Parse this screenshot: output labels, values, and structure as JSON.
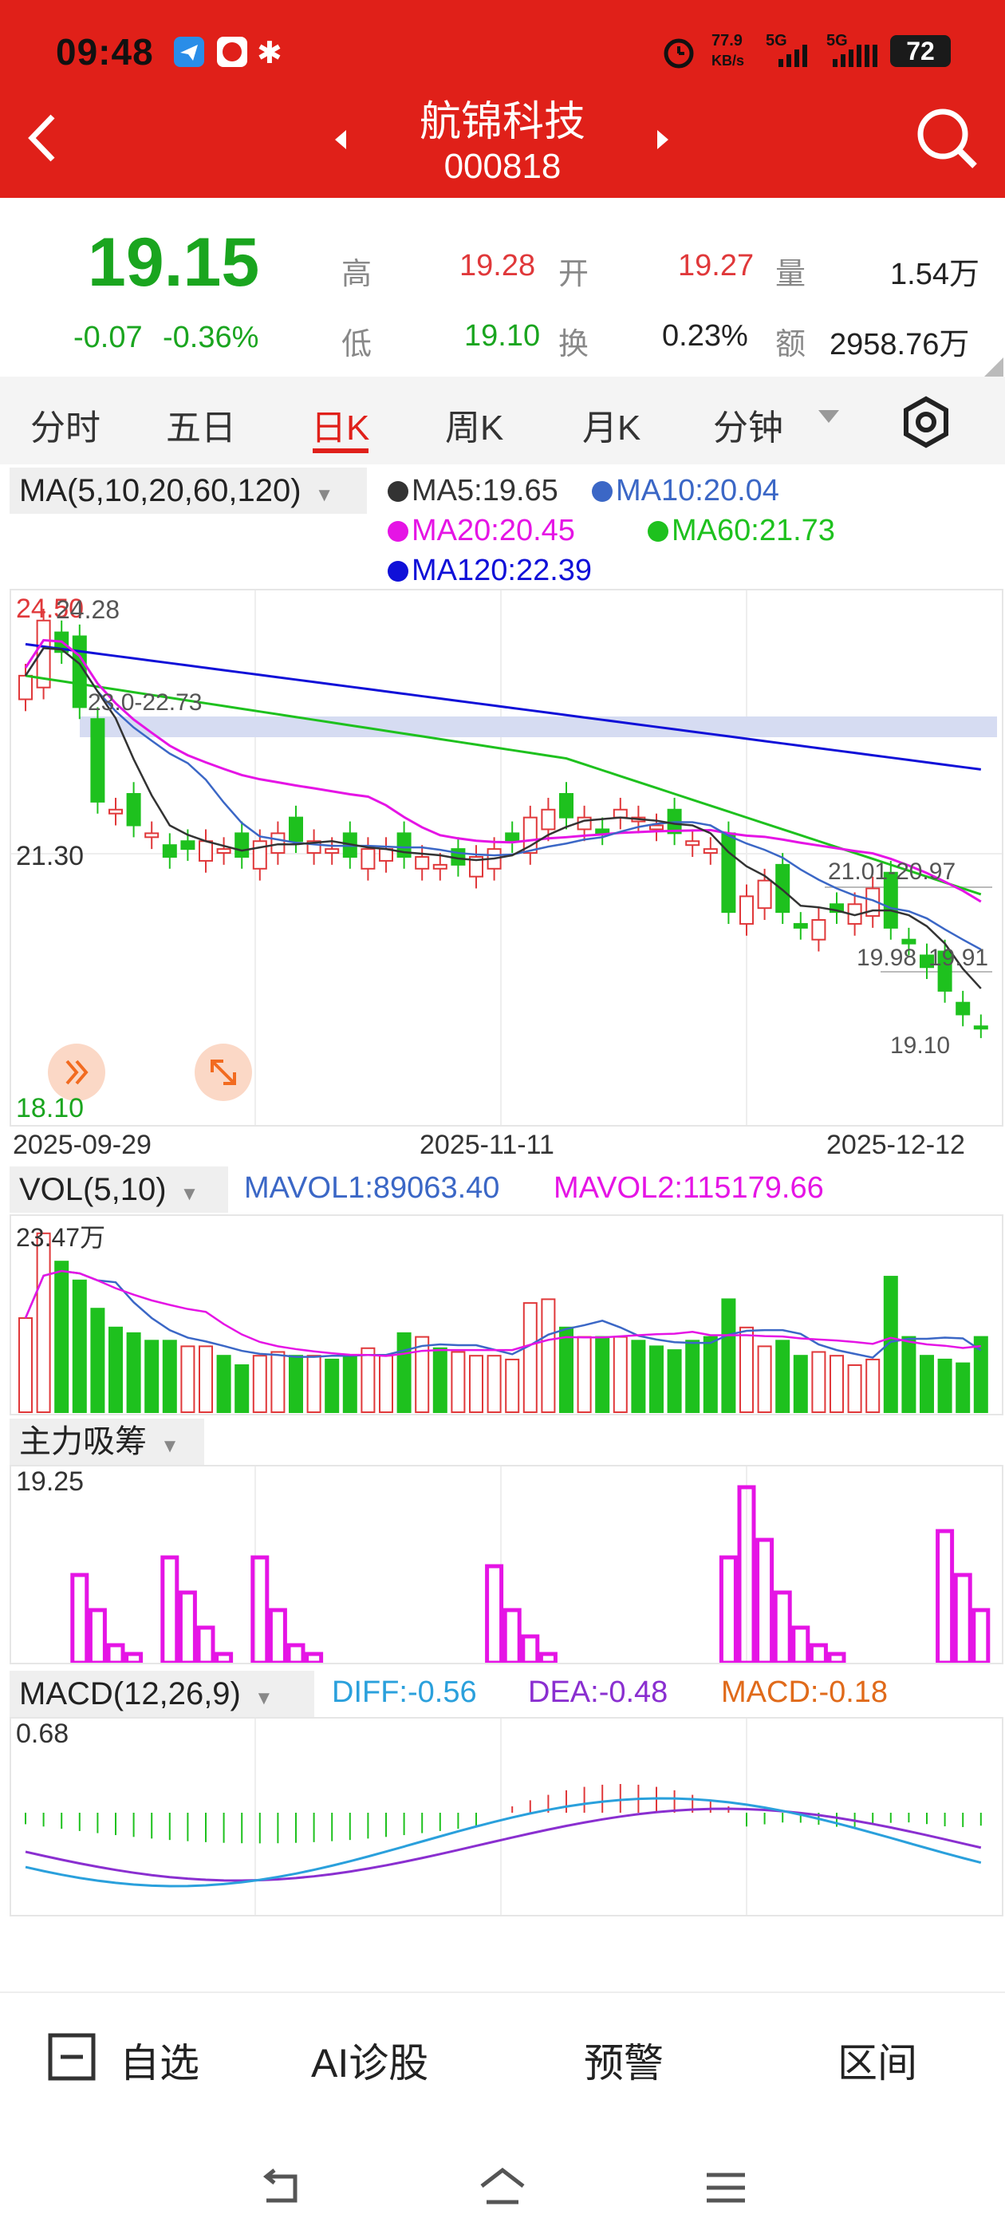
{
  "status_bar": {
    "time": "09:48",
    "net_speed": "77.9",
    "net_unit": "KB/s",
    "sig1": "5G",
    "sig2": "5G",
    "battery": "72"
  },
  "header": {
    "name": "航锦科技",
    "code": "000818"
  },
  "quote": {
    "price": "19.15",
    "change": "-0.07",
    "change_pct": "-0.36%",
    "high_label": "高",
    "high": "19.28",
    "open_label": "开",
    "open": "19.27",
    "vol_label": "量",
    "vol": "1.54万",
    "low_label": "低",
    "low": "19.10",
    "turn_label": "换",
    "turn": "0.23%",
    "amt_label": "额",
    "amt": "2958.76万"
  },
  "tabs": {
    "t1": "分时",
    "t2": "五日",
    "t3": "日K",
    "t4": "周K",
    "t5": "月K",
    "t6": "分钟"
  },
  "ma": {
    "selector": "MA(5,10,20,60,120)",
    "ma5": "MA5:19.65",
    "ma10": "MA10:20.04",
    "ma20": "MA20:20.45",
    "ma60": "MA60:21.73",
    "ma120": "MA120:22.39",
    "colors": {
      "ma5": "#333333",
      "ma10": "#3b67c6",
      "ma20": "#e514e5",
      "ma60": "#1ec11e",
      "ma120": "#1010d8"
    }
  },
  "kchart": {
    "high_label": "24.50",
    "high2": "24.28",
    "mid_label": "21.30",
    "low_label": "18.10",
    "band_label": "23.0-22.73",
    "ann1": "21.01-20.97",
    "ann2": "19.98",
    "ann3": "19.91",
    "ann4": "19.10",
    "date1": "2025-09-29",
    "date2": "2025-11-11",
    "date3": "2025-12-12"
  },
  "vol": {
    "selector": "VOL(5,10)",
    "mavol1": "MAVOL1:89063.40",
    "mavol2": "MAVOL2:115179.66",
    "top": "23.47万"
  },
  "zljc": {
    "selector": "主力吸筹",
    "top": "19.25"
  },
  "macd": {
    "selector": "MACD(12,26,9)",
    "diff": "DIFF:-0.56",
    "dea": "DEA:-0.48",
    "macd": "MACD:-0.18",
    "top": "0.68"
  },
  "chart_data": [
    {
      "type": "candlestick",
      "title": "",
      "x_start": "2025-09-29",
      "x_mid": "2025-11-11",
      "x_end": "2025-12-12",
      "ylim": [
        18.1,
        24.5
      ],
      "series": [
        {
          "name": "MA5",
          "value": 19.65
        },
        {
          "name": "MA10",
          "value": 20.04
        },
        {
          "name": "MA20",
          "value": 20.45
        },
        {
          "name": "MA60",
          "value": 21.73
        },
        {
          "name": "MA120",
          "value": 22.39
        }
      ]
    },
    {
      "type": "bar",
      "title": "VOL(5,10)",
      "ymax_label": "23.47万"
    },
    {
      "type": "bar",
      "title": "主力吸筹",
      "ymax": 19.25
    },
    {
      "type": "bar",
      "title": "MACD(12,26,9)",
      "ymax": 0.68,
      "diff": -0.56,
      "dea": -0.48,
      "macd": -0.18
    }
  ],
  "bottom_nav": {
    "watch": "自选",
    "ai": "AI诊股",
    "alert": "预警",
    "range": "区间"
  }
}
